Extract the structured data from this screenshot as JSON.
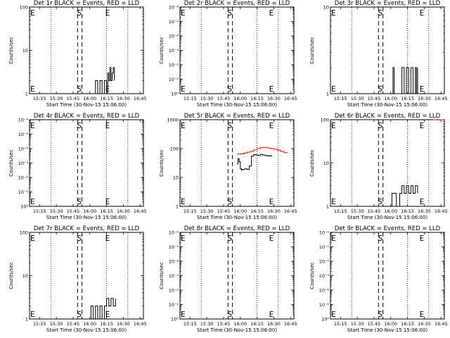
{
  "colors": {
    "events": "#000000",
    "lld": "#ff0000",
    "marker": "#000000"
  },
  "x_ticks": [
    "15:15",
    "15:30",
    "15:45",
    "16:00",
    "16:15",
    "16:30",
    "16:45"
  ],
  "x_label": "Start Time (30-Nov-15 15:06:00)",
  "y_label": "Counts/sec",
  "chart_data": [
    {
      "type": "line",
      "title": "Det 1r BLACK = Events, RED = LLD",
      "xlim": [
        "15:06",
        "16:48"
      ],
      "y_scale": "log",
      "ylim": [
        1,
        100
      ],
      "y_ticks": [
        "1",
        "10",
        "100"
      ],
      "dashed_x": [
        "15:49",
        "15:53"
      ],
      "dotted_x": [
        "15:25",
        "16:15",
        "16:34"
      ],
      "markers": [
        {
          "x": "15:06",
          "label": "E"
        },
        {
          "x": "15:51",
          "label": "S"
        },
        {
          "x": "16:15",
          "label": "E"
        }
      ],
      "series": [
        {
          "role": "events",
          "x": [
            "16:03",
            "16:05",
            "16:07",
            "16:09",
            "16:11",
            "16:13",
            "16:15",
            "16:16",
            "16:17",
            "16:18",
            "16:19",
            "16:20",
            "16:21",
            "16:22"
          ],
          "y": [
            1,
            2,
            1,
            2,
            1,
            2,
            1,
            3,
            2,
            4,
            2,
            3,
            4,
            2
          ]
        }
      ]
    },
    {
      "type": "line",
      "title": "Det 2r BLACK = Events, RED = LLD",
      "xlim": [
        "15:06",
        "16:48"
      ],
      "y_scale": "log",
      "ylim": [
        1,
        1000000
      ],
      "y_ticks": [
        "10⁰",
        "10⁻¹",
        "10⁻²",
        "10⁻³",
        "10⁻⁴",
        "10⁻⁵",
        "10⁻⁶"
      ],
      "dashed_x": [
        "15:49",
        "15:53"
      ],
      "dotted_x": [
        "15:25",
        "16:15",
        "16:34"
      ],
      "markers": [
        {
          "x": "15:06",
          "label": "E"
        },
        {
          "x": "15:51",
          "label": "S"
        },
        {
          "x": "16:27",
          "label": "E"
        }
      ],
      "series": []
    },
    {
      "type": "line",
      "title": "Det 3r BLACK = Events, RED = LLD",
      "xlim": [
        "15:06",
        "16:48"
      ],
      "y_scale": "log",
      "ylim": [
        1,
        10
      ],
      "y_ticks": [
        "1",
        "10"
      ],
      "dashed_x": [
        "15:49",
        "15:53"
      ],
      "dotted_x": [
        "15:25",
        "16:15",
        "16:34"
      ],
      "markers": [
        {
          "x": "15:06",
          "label": "E"
        },
        {
          "x": "15:51",
          "label": "S"
        },
        {
          "x": "16:27",
          "label": "E"
        }
      ],
      "series": [
        {
          "role": "events",
          "x": [
            "16:01",
            "16:02",
            "16:03",
            "16:09",
            "16:10",
            "16:12",
            "16:14",
            "16:16",
            "16:18",
            "16:20",
            "16:22",
            "16:23",
            "16:24"
          ],
          "y": [
            1,
            2,
            1,
            1,
            2,
            1,
            2,
            1,
            2,
            1,
            2,
            1,
            2
          ]
        }
      ]
    },
    {
      "type": "line",
      "title": "Det 4r BLACK = Events, RED = LLD",
      "xlim": [
        "15:06",
        "16:48"
      ],
      "y_scale": "log",
      "ylim": [
        1,
        1000000
      ],
      "y_ticks": [
        "10⁰",
        "10⁻¹",
        "10⁻²",
        "10⁻³",
        "10⁻⁴",
        "10⁻⁵",
        "10⁻⁶"
      ],
      "dashed_x": [
        "15:49",
        "15:53"
      ],
      "dotted_x": [
        "15:25",
        "16:15",
        "16:34"
      ],
      "markers": [
        {
          "x": "15:06",
          "label": "E"
        },
        {
          "x": "15:51",
          "label": "S"
        },
        {
          "x": "16:15",
          "label": "E"
        }
      ],
      "series": []
    },
    {
      "type": "line",
      "title": "Det 5r BLACK = Events, RED = LLD",
      "xlim": [
        "15:06",
        "16:48"
      ],
      "y_scale": "log",
      "ylim": [
        1,
        1000
      ],
      "y_ticks": [
        "1",
        "10",
        "100",
        "1000"
      ],
      "dashed_x": [
        "15:49",
        "15:53"
      ],
      "dotted_x": [
        "15:25",
        "16:15",
        "16:34"
      ],
      "markers": [
        {
          "x": "15:06",
          "label": "E"
        },
        {
          "x": "15:51",
          "label": "S"
        },
        {
          "x": "16:27",
          "label": "E"
        }
      ],
      "series": [
        {
          "role": "events",
          "x": [
            "15:57",
            "15:58",
            "15:59",
            "16:00",
            "16:01",
            "16:02",
            "16:04",
            "16:06",
            "16:08",
            "16:10",
            "16:12",
            "16:14",
            "16:16",
            "16:18",
            "16:20",
            "16:22",
            "16:24",
            "16:26",
            "16:28"
          ],
          "y": [
            30,
            45,
            35,
            20,
            18,
            19,
            20,
            19,
            25,
            55,
            62,
            60,
            58,
            63,
            60,
            58,
            55,
            57,
            52
          ]
        },
        {
          "role": "lld",
          "x": [
            "15:57",
            "16:00",
            "16:03",
            "16:06",
            "16:09",
            "16:12",
            "16:15",
            "16:18",
            "16:21",
            "16:24",
            "16:27",
            "16:30",
            "16:33",
            "16:36",
            "16:39",
            "16:42"
          ],
          "y": [
            65,
            66,
            70,
            75,
            80,
            90,
            100,
            108,
            110,
            105,
            100,
            95,
            88,
            80,
            72,
            70
          ]
        }
      ]
    },
    {
      "type": "line",
      "title": "Det 6r BLACK = Events, RED = LLD",
      "xlim": [
        "15:06",
        "16:48"
      ],
      "y_scale": "log",
      "ylim": [
        1,
        100
      ],
      "y_ticks": [
        "1",
        "10",
        "100"
      ],
      "dashed_x": [
        "15:49",
        "15:53"
      ],
      "dotted_x": [
        "15:25",
        "16:15",
        "16:34"
      ],
      "markers": [
        {
          "x": "15:06",
          "label": "E"
        },
        {
          "x": "15:51",
          "label": "S"
        },
        {
          "x": "16:27",
          "label": "E"
        }
      ],
      "series": [
        {
          "role": "events",
          "x": [
            "16:00",
            "16:01",
            "16:04",
            "16:05",
            "16:08",
            "16:10",
            "16:12",
            "16:14",
            "16:16",
            "16:18",
            "16:20",
            "16:22",
            "16:24"
          ],
          "y": [
            1,
            2,
            2,
            1,
            2,
            3,
            2,
            3,
            2,
            3,
            2,
            3,
            2
          ]
        },
        {
          "role": "lld",
          "x": [
            "16:38",
            "16:41",
            "16:44",
            "16:47"
          ],
          "y": [
            100,
            99,
            100,
            98
          ]
        }
      ]
    },
    {
      "type": "line",
      "title": "Det 7r BLACK = Events, RED = LLD",
      "xlim": [
        "15:06",
        "16:48"
      ],
      "y_scale": "log",
      "ylim": [
        1,
        100
      ],
      "y_ticks": [
        "1",
        "10",
        "100"
      ],
      "dashed_x": [
        "15:49",
        "15:53"
      ],
      "dotted_x": [
        "15:25",
        "16:15",
        "16:34"
      ],
      "markers": [
        {
          "x": "15:06",
          "label": "E"
        },
        {
          "x": "15:51",
          "label": "S"
        },
        {
          "x": "16:15",
          "label": "E"
        }
      ],
      "series": [
        {
          "role": "events",
          "x": [
            "15:59",
            "16:01",
            "16:03",
            "16:05",
            "16:07",
            "16:09",
            "16:11",
            "16:13",
            "16:15",
            "16:17",
            "16:19",
            "16:21",
            "16:23"
          ],
          "y": [
            1,
            2,
            1,
            2,
            1,
            2,
            1,
            2,
            3,
            2,
            3,
            2,
            3
          ]
        }
      ]
    },
    {
      "type": "line",
      "title": "Det 8r BLACK = Events, RED = LLD",
      "xlim": [
        "15:06",
        "16:48"
      ],
      "y_scale": "log",
      "ylim": [
        1,
        1000000
      ],
      "y_ticks": [
        "10⁰",
        "10⁻¹",
        "10⁻²",
        "10⁻³",
        "10⁻⁴",
        "10⁻⁵",
        "10⁻⁶"
      ],
      "dashed_x": [
        "15:49",
        "15:53"
      ],
      "dotted_x": [
        "15:25",
        "16:15",
        "16:34"
      ],
      "markers": [
        {
          "x": "15:06",
          "label": "E"
        },
        {
          "x": "15:51",
          "label": "S"
        },
        {
          "x": "16:27",
          "label": "E"
        }
      ],
      "series": []
    },
    {
      "type": "line",
      "title": "Det 9r BLACK = Events, RED = LLD",
      "xlim": [
        "15:06",
        "16:48"
      ],
      "y_scale": "log",
      "ylim": [
        1,
        1000000
      ],
      "y_ticks": [
        "10⁰",
        "10⁻¹",
        "10⁻²",
        "10⁻³",
        "10⁻⁴",
        "10⁻⁵",
        "10⁻⁶"
      ],
      "dashed_x": [
        "15:49",
        "15:53"
      ],
      "dotted_x": [
        "15:25",
        "16:15",
        "16:34"
      ],
      "markers": [
        {
          "x": "15:06",
          "label": "E"
        },
        {
          "x": "15:51",
          "label": "S"
        },
        {
          "x": "16:27",
          "label": "E"
        }
      ],
      "series": []
    }
  ]
}
